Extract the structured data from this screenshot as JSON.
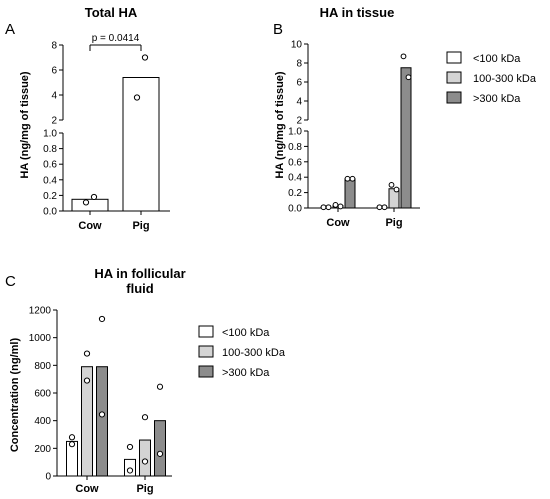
{
  "colors": {
    "lt100": "#ffffff",
    "mid": "#d4d4d4",
    "gt300": "#8c8c8c",
    "bar_single": "#ffffff",
    "stroke": "#000000"
  },
  "chart_data": [
    {
      "id": "A",
      "panel_label": "A",
      "type": "bar",
      "title": "Total HA",
      "ylabel": "HA (ng/mg of tissue)",
      "categories": [
        "Cow",
        "Pig"
      ],
      "axis_break": true,
      "lower_range": [
        0,
        1.0
      ],
      "upper_range": [
        2,
        8
      ],
      "lower_ticks": [
        "0.0",
        "0.2",
        "0.4",
        "0.6",
        "0.8",
        "1.0"
      ],
      "upper_ticks": [
        "2",
        "4",
        "6",
        "8"
      ],
      "series": [
        {
          "values": [
            0.15,
            5.4
          ],
          "points": [
            [
              0.11,
              0.18
            ],
            [
              3.8,
              7.0
            ]
          ]
        }
      ],
      "annotation": {
        "text": "p = 0.0414",
        "between": [
          "Cow",
          "Pig"
        ]
      }
    },
    {
      "id": "B",
      "panel_label": "B",
      "type": "bar",
      "title": "HA in tissue",
      "ylabel": "HA (ng/mg of tissue)",
      "categories": [
        "Cow",
        "Pig"
      ],
      "axis_break": true,
      "lower_range": [
        0,
        1.0
      ],
      "upper_range": [
        2,
        10
      ],
      "lower_ticks": [
        "0.0",
        "0.2",
        "0.4",
        "0.6",
        "0.8",
        "1.0"
      ],
      "upper_ticks": [
        "2",
        "4",
        "6",
        "8",
        "10"
      ],
      "series": [
        {
          "name": "<100 kDa",
          "color_key": "lt100",
          "values": [
            0.01,
            0.01
          ],
          "points": [
            [
              0.01,
              0.01
            ],
            [
              0.01,
              0.01
            ]
          ]
        },
        {
          "name": "100-300 kDa",
          "color_key": "mid",
          "values": [
            0.03,
            0.25
          ],
          "points": [
            [
              0.04,
              0.02
            ],
            [
              0.3,
              0.24
            ]
          ]
        },
        {
          "name": ">300 kDa",
          "color_key": "gt300",
          "values": [
            0.38,
            7.5
          ],
          "points": [
            [
              0.38,
              0.38
            ],
            [
              8.7,
              6.5
            ]
          ]
        }
      ],
      "legend": {
        "position": "right",
        "items": [
          "<100 kDa",
          "100-300 kDa",
          ">300 kDa"
        ]
      }
    },
    {
      "id": "C",
      "panel_label": "C",
      "type": "bar",
      "title": "HA in follicular fluid",
      "title_lines": [
        "HA in follicular",
        "fluid"
      ],
      "ylabel": "Concentration (ng/ml)",
      "categories": [
        "Cow",
        "Pig"
      ],
      "ylim": [
        0,
        1200
      ],
      "yticks": [
        "0",
        "200",
        "400",
        "600",
        "800",
        "1000",
        "1200"
      ],
      "series": [
        {
          "name": "<100 kDa",
          "color_key": "lt100",
          "values": [
            250,
            120
          ],
          "points": [
            [
              280,
              230
            ],
            [
              210,
              40
            ]
          ]
        },
        {
          "name": "100-300 kDa",
          "color_key": "mid",
          "values": [
            790,
            260
          ],
          "points": [
            [
              885,
              690
            ],
            [
              425,
              105
            ]
          ]
        },
        {
          "name": ">300 kDa",
          "color_key": "gt300",
          "values": [
            790,
            400
          ],
          "points": [
            [
              1135,
              445
            ],
            [
              645,
              160
            ]
          ]
        }
      ],
      "legend": {
        "position": "right",
        "items": [
          "<100 kDa",
          "100-300 kDa",
          ">300 kDa"
        ]
      }
    }
  ]
}
